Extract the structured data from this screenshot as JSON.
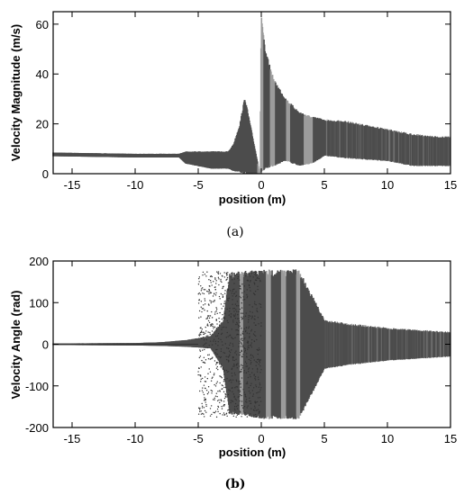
{
  "chart_data": [
    {
      "type": "scatter",
      "caption": "(a)",
      "xlabel": "position (m)",
      "ylabel": "Velocity Magnitude (m/s)",
      "xlim": [
        -16.5,
        15
      ],
      "ylim": [
        0,
        65
      ],
      "xticks": [
        -15,
        -10,
        -5,
        0,
        5,
        10,
        15
      ],
      "yticks": [
        0,
        20,
        40,
        60
      ],
      "grid": false,
      "legend": "none",
      "colors": {
        "dark": "#4d4d4d",
        "light": "#9c9c9c"
      },
      "envelope": {
        "x": [
          -16.5,
          -10,
          -6.5,
          -6,
          -4,
          -2.6,
          -2.2,
          -1.7,
          -1.3,
          -0.1,
          0.0,
          0.3,
          1.0,
          2.0,
          3.0,
          4.0,
          5.0,
          7.0,
          10.0,
          12.0,
          14.0,
          15.0
        ],
        "upper": [
          8.5,
          8,
          8,
          9,
          9,
          9,
          12,
          20,
          31,
          0,
          65,
          50,
          38,
          30,
          25,
          23,
          22,
          21,
          18,
          16,
          15,
          15
        ],
        "lower": [
          7,
          6.5,
          6.5,
          4,
          2,
          2,
          1,
          0.5,
          0,
          0,
          0,
          2,
          3,
          5,
          3,
          4,
          7,
          6,
          5,
          3,
          3,
          3
        ]
      },
      "light_bands": [
        [
          -0.3,
          0.2
        ],
        [
          0.7,
          1.1
        ],
        [
          2.0,
          2.3
        ],
        [
          3.4,
          4.1
        ]
      ]
    },
    {
      "type": "scatter",
      "caption": "(b)",
      "xlabel": "position (m)",
      "ylabel": "Velocity Angle (rad)",
      "xlim": [
        -16.5,
        15
      ],
      "ylim": [
        -200,
        200
      ],
      "xticks": [
        -15,
        -10,
        -5,
        0,
        5,
        10,
        15
      ],
      "yticks": [
        -200,
        -100,
        0,
        100,
        200
      ],
      "grid": false,
      "legend": "none",
      "colors": {
        "dark": "#4d4d4d",
        "light": "#9c9c9c"
      },
      "envelope": {
        "x": [
          -16.5,
          -10,
          -8,
          -6,
          -5,
          -4,
          -3,
          -2.5,
          -1.5,
          0,
          3,
          4,
          5,
          7,
          10,
          15
        ],
        "upper": [
          2,
          3,
          5,
          10,
          15,
          20,
          60,
          175,
          175,
          180,
          180,
          120,
          60,
          50,
          40,
          30
        ],
        "lower": [
          -2,
          -3,
          -4,
          -6,
          -8,
          -10,
          -60,
          -170,
          -170,
          -180,
          -180,
          -120,
          -60,
          -50,
          -40,
          -30
        ]
      },
      "light_bands": [
        [
          -1.7,
          -1.4
        ],
        [
          0.4,
          0.8
        ],
        [
          1.6,
          2.0
        ],
        [
          2.8,
          3.1
        ]
      ]
    }
  ]
}
